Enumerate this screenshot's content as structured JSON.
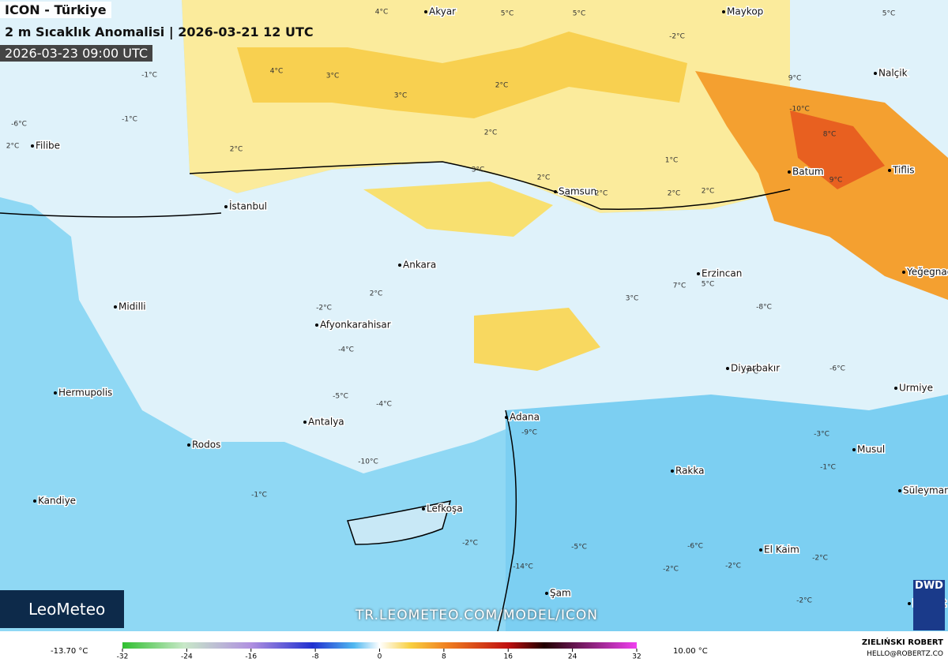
{
  "header": {
    "title": "ICON - Türkiye",
    "subtitle": "2 m Sıcaklık Anomalisi | 2026-03-21 12 UTC",
    "valid_time": "2026-03-23 09:00 UTC"
  },
  "cities": [
    "Akyar",
    "Maykop",
    "Nalçik",
    "Filibe",
    "İstanbul",
    "Batum",
    "Tiflis",
    "Samsun",
    "Ankara",
    "Erzincan",
    "Yeğegnadzor",
    "Midilli",
    "Afyonkarahisar",
    "Diyarbakır",
    "Urmiye",
    "Hermupolis",
    "Antalya",
    "Adana",
    "Rodos",
    "Musul",
    "Rakka",
    "Kandiye",
    "Süleymaniye",
    "Lefkoşa",
    "El Kaim",
    "Şam",
    "Bağdat"
  ],
  "temps": [
    "4°C",
    "5°C",
    "5°C",
    "5°C",
    "4°C",
    "3°C",
    "2°C",
    "3°C",
    "2°C",
    "2°C",
    "1°C",
    "2°C",
    "2°C",
    "2°C",
    "2°C",
    "2°C",
    "-1°C",
    "-1°C",
    "2°C",
    "-6°C",
    "9°C",
    "-10°C",
    "8°C",
    "9°C",
    "3°C",
    "-2°C",
    "3°C",
    "-4°C",
    "5°C",
    "7°C",
    "-8°C",
    "-5°C",
    "-4°C",
    "-2°C",
    "-6°C",
    "-10°C",
    "-9°C",
    "-7°C",
    "-3°C",
    "-2°C",
    "-5°C",
    "-6°C",
    "-2°C",
    "-1°C",
    "-2°C",
    "-14°C",
    "-1°C",
    "-2°C",
    "-2°C"
  ],
  "watermark": "TR.LEOMETEO.COM/MODEL/ICON",
  "brand": "LeoMeteo",
  "model_badge": "DWD",
  "author": {
    "name": "ZIELIŃSKI ROBERT",
    "email": "HELLO@ROBERTZ.CO"
  },
  "colorbar": {
    "min_label": "-13.70 °C",
    "max_label": "10.00 °C",
    "ticks": [
      -32,
      -24,
      -16,
      -8,
      0,
      8,
      16,
      24,
      32
    ]
  }
}
